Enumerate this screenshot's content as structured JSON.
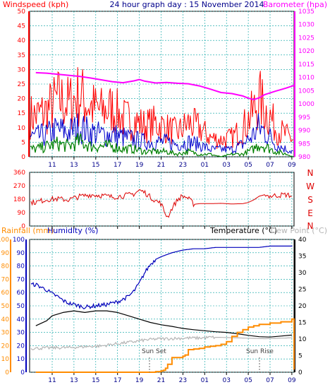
{
  "header": {
    "windspeed_label": "Windspeed (kph)",
    "title": "24 hour graph day : 15 November 2014",
    "barometer_label": "Barometer (hpa)"
  },
  "mid_header": {
    "rainfall_label": "Rainfall (mm)",
    "humidity_label": "Humidity (%)",
    "temperature_label": "Temperature (°C)",
    "dewpoint_label": "Dew Point (°C)"
  },
  "time_ticks": [
    "11",
    "13",
    "15",
    "17",
    "19",
    "21",
    "23",
    "01",
    "03",
    "05",
    "07",
    "09"
  ],
  "compass_labels": [
    "N",
    "W",
    "S",
    "E",
    "N"
  ],
  "annotations": {
    "sun_set": "Sun Set",
    "sun_rise": "Sun Rise"
  },
  "colors": {
    "wind_gust": "#ff0000",
    "wind_avg": "#0000cc",
    "wind_low": "#008000",
    "barometer": "#ff00ff",
    "direction": "#dd0000",
    "rain": "#ff8c00",
    "humidity": "#0000bb",
    "temperature": "#000000",
    "dewpoint": "#b4b4b4",
    "grid": "#00a0a0",
    "axis_label": "#00008b"
  },
  "chart_data": [
    {
      "type": "line",
      "title": "24 hour graph day : 15 November 2014",
      "x_range_hours": [
        9.5,
        33.3
      ],
      "x_ticks": [
        "11",
        "13",
        "15",
        "17",
        "19",
        "21",
        "23",
        "01",
        "03",
        "05",
        "07",
        "09"
      ],
      "y_axes": [
        {
          "label": "Windspeed (kph)",
          "ticks": [
            0,
            5,
            10,
            15,
            20,
            25,
            30,
            35,
            40,
            45,
            50
          ],
          "ylim": [
            0,
            50
          ]
        },
        {
          "label": "Barometer (hpa)",
          "ticks": [
            980,
            985,
            990,
            995,
            1000,
            1005,
            1010,
            1015,
            1020,
            1025,
            1030,
            1035
          ],
          "ylim": [
            980,
            1035
          ]
        }
      ],
      "series": [
        {
          "name": "Barometer (hpa)",
          "axis": "right",
          "x": [
            9.5,
            10.5,
            11.5,
            12.5,
            13.5,
            14.5,
            15.5,
            16.5,
            17.5,
            18.5,
            19.0,
            19.5,
            20.5,
            21.5,
            22.5,
            23.5,
            24.5,
            25.5,
            26.5,
            27.5,
            28.5,
            29.0,
            29.5,
            30.0,
            30.5,
            31.5,
            32.5,
            33.2
          ],
          "values": [
            1011.8,
            1011.6,
            1011.2,
            1010.8,
            1010.4,
            1009.8,
            1009.1,
            1008.4,
            1008.0,
            1008.7,
            1009.2,
            1008.6,
            1007.9,
            1008.1,
            1007.8,
            1007.6,
            1006.8,
            1005.6,
            1004.3,
            1003.9,
            1003.0,
            1002.2,
            1001.6,
            1002.3,
            1003.5,
            1004.8,
            1006.0,
            1007.0
          ]
        },
        {
          "name": "Windspeed",
          "axis": "left",
          "encoding": "gust envelope (red) with average (blue) and lull (green) traces",
          "x": [
            9.5,
            10.5,
            11.5,
            12.5,
            13.5,
            14.5,
            15.5,
            16.5,
            17.5,
            18.5,
            19.5,
            20.5,
            21.5,
            22.5,
            23.5,
            24.5,
            25.5,
            26.5,
            27.5,
            28.5,
            29.5,
            30.0,
            30.5,
            31.0,
            31.5,
            32.5,
            33.2
          ],
          "gust": [
            17,
            19,
            24,
            22,
            26,
            21,
            19,
            20,
            16,
            15,
            13,
            14,
            12,
            10,
            14,
            12,
            8,
            7,
            8,
            12,
            19,
            24,
            20,
            17,
            12,
            9,
            7
          ],
          "average": [
            8,
            9,
            11,
            10,
            12,
            10,
            9,
            9,
            8,
            7,
            6,
            6,
            6,
            5,
            6,
            5,
            3,
            3,
            3,
            5,
            9,
            12,
            10,
            8,
            5,
            3,
            2
          ],
          "lull": [
            3,
            4,
            5,
            4,
            6,
            4,
            4,
            4,
            3,
            3,
            2,
            2,
            2,
            1,
            2,
            1,
            1,
            0,
            1,
            1,
            3,
            5,
            4,
            3,
            2,
            1,
            0
          ]
        }
      ]
    },
    {
      "type": "line",
      "ylabel": "Wind direction",
      "y_ticks": [
        0,
        90,
        180,
        270,
        360
      ],
      "ylim": [
        0,
        360
      ],
      "compass": [
        "N",
        "W",
        "S",
        "E",
        "N"
      ],
      "series": [
        {
          "name": "Wind direction",
          "x": [
            9.5,
            10.5,
            11.5,
            12.5,
            13.5,
            14.5,
            15.5,
            16.5,
            17.5,
            18.5,
            19.0,
            19.5,
            20.0,
            20.5,
            21.0,
            21.3,
            21.6,
            22.0,
            22.5,
            22.9,
            23.3,
            23.7,
            24.0,
            24.5,
            25.5,
            26.5,
            27.5,
            28.5,
            29.0,
            29.5,
            30.0,
            30.5,
            31.0,
            31.5,
            32.5,
            33.2
          ],
          "values": [
            160,
            178,
            182,
            176,
            198,
            210,
            205,
            195,
            202,
            215,
            240,
            225,
            195,
            170,
            150,
            95,
            60,
            120,
            175,
            200,
            195,
            170,
            145,
            150,
            150,
            152,
            148,
            150,
            158,
            175,
            200,
            210,
            200,
            205,
            210,
            198
          ]
        }
      ]
    },
    {
      "type": "line",
      "y_axes": [
        {
          "label": "Rainfall (mm)",
          "ticks": [
            0,
            10,
            20,
            30,
            40,
            50,
            60,
            70,
            80,
            90,
            100
          ],
          "ylim": [
            0,
            100
          ]
        },
        {
          "label": "Humidity (%)",
          "ticks": [
            0,
            10,
            20,
            30,
            40,
            50,
            60,
            70,
            80,
            90,
            100
          ],
          "ylim": [
            0,
            100
          ]
        },
        {
          "label": "Temperature (°C)",
          "ticks": [
            0,
            5,
            10,
            15,
            20,
            25,
            30,
            35,
            40
          ],
          "ylim": [
            0,
            40
          ]
        }
      ],
      "annotations": [
        "Sun Set",
        "Sun Rise"
      ],
      "series": [
        {
          "name": "Humidity (%)",
          "axis": "humidity",
          "x": [
            9.5,
            10.0,
            10.5,
            11.0,
            11.5,
            12.0,
            12.5,
            13.0,
            13.5,
            14.0,
            15.0,
            16.0,
            17.0,
            17.5,
            18.0,
            18.5,
            19.0,
            19.5,
            20.0,
            20.5,
            21.0,
            22.0,
            23.0,
            24.0,
            25.0,
            26.0,
            27.0,
            28.0,
            29.0,
            30.0,
            31.0,
            32.0,
            33.0
          ],
          "values": [
            66,
            64,
            62,
            59,
            57,
            54,
            52,
            51,
            50,
            49,
            50,
            51,
            53,
            55,
            57,
            61,
            67,
            75,
            81,
            85,
            87,
            90,
            92,
            93,
            93,
            94,
            94,
            94,
            94,
            94,
            95,
            95,
            95
          ]
        },
        {
          "name": "Temperature (°C)",
          "axis": "temperature",
          "x": [
            9.5,
            10.5,
            11.0,
            12.0,
            13.0,
            14.0,
            15.0,
            16.0,
            17.0,
            18.0,
            19.0,
            20.0,
            21.0,
            22.0,
            23.0,
            24.0,
            25.0,
            26.0,
            27.0,
            28.0,
            29.0,
            30.0,
            31.0,
            32.0,
            33.0
          ],
          "values": [
            14.0,
            15.5,
            17.0,
            18.0,
            18.5,
            18.0,
            18.5,
            18.5,
            18.0,
            17.0,
            16.0,
            15.0,
            14.3,
            13.8,
            13.2,
            12.8,
            12.5,
            12.2,
            12.0,
            11.6,
            11.1,
            10.7,
            10.6,
            10.9,
            11.2
          ]
        },
        {
          "name": "Dew Point (°C)",
          "axis": "temperature",
          "x": [
            9.5,
            10.5,
            11.5,
            12.5,
            13.5,
            14.5,
            15.5,
            16.5,
            17.5,
            18.5,
            19.5,
            20.5,
            21.5,
            22.5,
            23.5,
            24.5,
            25.5,
            26.5,
            27.5,
            28.5,
            29.5,
            30.5,
            31.5,
            32.5,
            33.0
          ],
          "values": [
            7.2,
            7.3,
            7.4,
            7.4,
            7.6,
            7.8,
            7.9,
            8.4,
            8.8,
            9.2,
            9.7,
            10.0,
            10.1,
            10.2,
            10.3,
            10.3,
            10.5,
            10.5,
            10.4,
            10.3,
            10.2,
            10.1,
            10.2,
            10.3,
            10.4
          ]
        },
        {
          "name": "Rainfall (mm)",
          "axis": "rain",
          "x": [
            9.5,
            19.8,
            20.0,
            20.5,
            21.0,
            21.2,
            21.4,
            21.6,
            22.0,
            23.0,
            23.2,
            23.5,
            24.0,
            24.5,
            25.0,
            25.5,
            26.0,
            26.5,
            27.0,
            27.5,
            28.0,
            28.5,
            29.0,
            29.5,
            30.0,
            31.0,
            32.0,
            33.0,
            33.2
          ],
          "values": [
            0,
            0,
            0,
            0.5,
            1,
            1.5,
            3,
            6,
            11,
            12,
            13,
            17,
            17.5,
            18,
            19,
            19.5,
            20,
            21,
            23,
            27,
            30,
            32,
            34,
            35,
            36,
            37,
            38,
            40,
            2
          ]
        }
      ]
    }
  ]
}
